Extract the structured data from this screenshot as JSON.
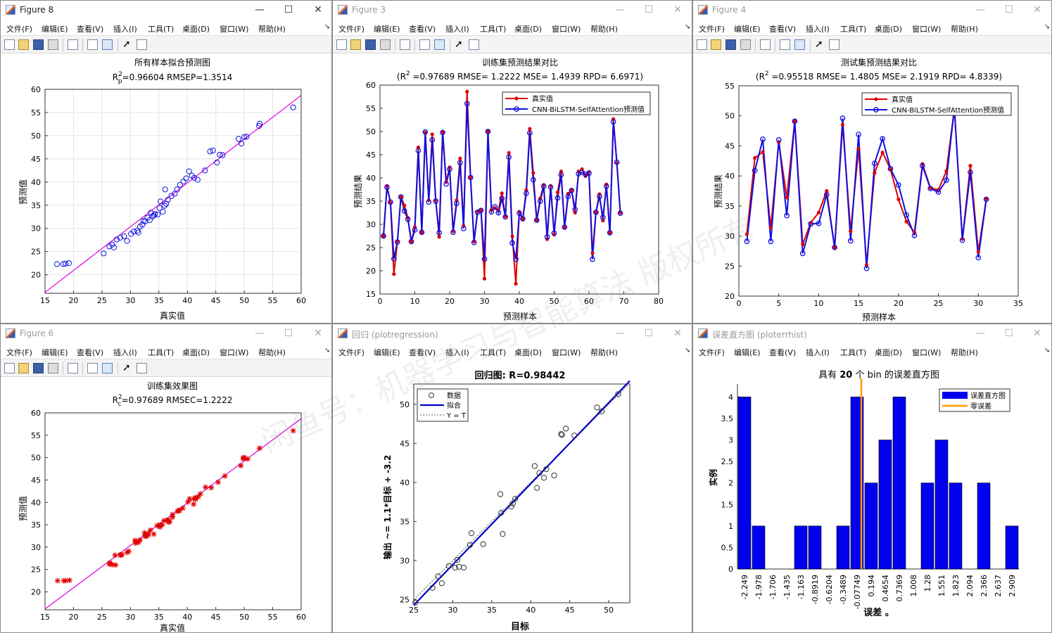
{
  "menu": [
    "文件(F)",
    "编辑(E)",
    "查看(V)",
    "插入(I)",
    "工具(T)",
    "桌面(D)",
    "窗口(W)",
    "帮助(H)"
  ],
  "window_buttons": {
    "minimize": "—",
    "maximize": "☐",
    "close": "✕"
  },
  "colors": {
    "red": "#e00000",
    "blue": "#1010e0",
    "magenta": "#e000e0",
    "orange": "#ff9900",
    "hist_blue": "#0000ee"
  },
  "figure8": {
    "window_title": "Figure 8",
    "title": "所有样本拟合预测图",
    "stat_pre": "R",
    "stat_sup": "2",
    "stat_sub": "p",
    "stat_rest": "=0.96604  RMSEP=1.3514",
    "chart_data": {
      "type": "scatter",
      "xlabel": "真实值",
      "ylabel": "预测值",
      "xlim": [
        15,
        60
      ],
      "ylim": [
        16,
        60
      ],
      "xticks": [
        15,
        20,
        25,
        30,
        35,
        40,
        45,
        50,
        55,
        60
      ],
      "yticks": [
        20,
        25,
        30,
        35,
        40,
        45,
        50,
        55,
        60
      ],
      "fit_line": [
        [
          15,
          16.2
        ],
        [
          60,
          58.7
        ]
      ],
      "points": [
        [
          17.1,
          22.3
        ],
        [
          18.2,
          22.3
        ],
        [
          18.6,
          22.4
        ],
        [
          19.2,
          22.5
        ],
        [
          25.3,
          24.6
        ],
        [
          26.3,
          26.1
        ],
        [
          26.8,
          26.5
        ],
        [
          27.1,
          25.9
        ],
        [
          27.6,
          27.6
        ],
        [
          28.2,
          28.0
        ],
        [
          28.9,
          28.3
        ],
        [
          29.4,
          27.3
        ],
        [
          30.1,
          28.8
        ],
        [
          30.6,
          29.3
        ],
        [
          31.2,
          29.5
        ],
        [
          31.7,
          30.4
        ],
        [
          32.1,
          30.8
        ],
        [
          32.6,
          31.5
        ],
        [
          33.0,
          32.3
        ],
        [
          33.4,
          31.8
        ],
        [
          33.9,
          32.6
        ],
        [
          34.3,
          33.1
        ],
        [
          34.8,
          33.0
        ],
        [
          35.3,
          35.8
        ],
        [
          35.7,
          33.6
        ],
        [
          36.0,
          34.9
        ],
        [
          36.6,
          36.2
        ],
        [
          37.2,
          37.0
        ],
        [
          37.8,
          37.5
        ],
        [
          38.2,
          38.4
        ],
        [
          38.7,
          39.4
        ],
        [
          39.3,
          40.1
        ],
        [
          39.8,
          40.8
        ],
        [
          40.3,
          42.3
        ],
        [
          40.8,
          41.4
        ],
        [
          41.2,
          40.9
        ],
        [
          41.8,
          40.5
        ],
        [
          43.1,
          42.5
        ],
        [
          44.0,
          46.6
        ],
        [
          44.5,
          46.8
        ],
        [
          45.2,
          44.2
        ],
        [
          45.7,
          45.9
        ],
        [
          46.2,
          45.8
        ],
        [
          49.0,
          49.3
        ],
        [
          49.5,
          48.3
        ],
        [
          50.0,
          49.7
        ],
        [
          50.4,
          49.8
        ],
        [
          52.6,
          52.1
        ],
        [
          52.7,
          52.6
        ],
        [
          58.6,
          56.1
        ],
        [
          31.4,
          29.1
        ],
        [
          32.3,
          31.6
        ],
        [
          33.6,
          33.4
        ],
        [
          35.1,
          34.4
        ],
        [
          36.3,
          35.3
        ],
        [
          34.1,
          32.8
        ],
        [
          36.1,
          38.4
        ]
      ]
    }
  },
  "figure3": {
    "window_title": "Figure 3",
    "title": "训练集预测结果对比",
    "stat_pre": "(R",
    "stat_sup": "2",
    "stat_rest": " =0.97689 RMSE= 1.2222 MSE= 1.4939 RPD= 6.6971)",
    "chart_data": {
      "type": "line",
      "xlabel": "预测样本",
      "ylabel": "预测结果",
      "xlim": [
        0,
        80
      ],
      "ylim": [
        15,
        60
      ],
      "xticks": [
        0,
        10,
        20,
        30,
        40,
        50,
        60,
        70,
        80
      ],
      "yticks": [
        15,
        20,
        25,
        30,
        35,
        40,
        45,
        50,
        55,
        60
      ],
      "legend": [
        "真实值",
        "CNN-BiLSTM-SelfAttention预测值"
      ],
      "series": [
        {
          "name": "真实值",
          "values": [
            27.5,
            38.3,
            34.7,
            19.3,
            26.3,
            35.9,
            34.1,
            31.4,
            26.3,
            29.4,
            46.6,
            28.3,
            49.8,
            35.2,
            49.4,
            35.2,
            27.3,
            49.9,
            39.2,
            42.3,
            28.5,
            35.2,
            44.2,
            29.7,
            58.6,
            40.1,
            26.3,
            32.8,
            33.1,
            18.3,
            50.0,
            33.1,
            33.5,
            33.1,
            36.7,
            31.7,
            45.4,
            27.4,
            17.2,
            32.7,
            31.2,
            37.4,
            50.6,
            41.1,
            30.9,
            35.6,
            38.5,
            26.8,
            38.3,
            27.8,
            36.9,
            41.4,
            29.3,
            36.6,
            37.4,
            32.5,
            41.4,
            41.9,
            40.4,
            41.3,
            23.8,
            32.6,
            36.5,
            30.8,
            38.6,
            28.2,
            52.7,
            43.2,
            32.5
          ]
        },
        {
          "name": "CNN-BiLSTM-SelfAttention预测值",
          "values": [
            27.5,
            38.0,
            34.8,
            22.6,
            26.2,
            35.9,
            32.9,
            31.1,
            26.3,
            28.8,
            45.9,
            28.3,
            49.9,
            34.8,
            48.2,
            35.0,
            28.2,
            49.8,
            38.7,
            41.9,
            28.3,
            34.5,
            43.3,
            29.1,
            56.0,
            40.1,
            26.1,
            32.6,
            33.0,
            22.5,
            50.0,
            32.7,
            33.8,
            32.5,
            35.6,
            31.6,
            44.5,
            26.0,
            22.5,
            32.4,
            31.2,
            36.7,
            49.7,
            39.6,
            30.9,
            35.0,
            38.2,
            27.3,
            38.0,
            28.1,
            35.7,
            40.7,
            29.4,
            36.0,
            37.3,
            33.2,
            40.9,
            41.2,
            40.8,
            41.0,
            22.5,
            32.6,
            36.0,
            31.5,
            38.2,
            28.2,
            52.1,
            43.4,
            32.4
          ]
        }
      ]
    }
  },
  "figure4": {
    "window_title": "Figure 4",
    "title": "测试集预测结果对比",
    "stat_pre": "(R",
    "stat_sup": "2",
    "stat_rest": " =0.95518 RMSE= 1.4805 MSE= 2.1919 RPD= 4.8339)",
    "chart_data": {
      "type": "line",
      "xlabel": "预测样本",
      "ylabel": "预测结果",
      "xlim": [
        0,
        35
      ],
      "ylim": [
        20,
        55
      ],
      "xticks": [
        0,
        5,
        10,
        15,
        20,
        25,
        30,
        35
      ],
      "yticks": [
        20,
        25,
        30,
        35,
        40,
        45,
        50,
        55
      ],
      "legend": [
        "真实值",
        "CNN-BiLSTM-SelfAttention预测值"
      ],
      "series": [
        {
          "name": "真实值",
          "values": [
            30.3,
            43.0,
            44.0,
            31.4,
            45.6,
            36.4,
            49.1,
            28.6,
            32.2,
            33.9,
            37.5,
            28.1,
            48.5,
            30.8,
            44.5,
            25.2,
            40.5,
            43.9,
            41.1,
            36.1,
            32.4,
            30.6,
            42.0,
            38.0,
            37.7,
            40.8,
            51.2,
            29.5,
            41.7,
            27.4,
            36.2
          ]
        },
        {
          "name": "CNN-BiLSTM-SelfAttention预测值",
          "values": [
            29.1,
            40.9,
            46.1,
            29.1,
            46.0,
            33.4,
            49.1,
            27.1,
            32.0,
            32.1,
            36.9,
            28.1,
            49.6,
            29.2,
            46.9,
            24.6,
            42.1,
            46.2,
            41.2,
            38.5,
            33.5,
            30.1,
            41.7,
            37.9,
            37.3,
            39.3,
            51.3,
            29.3,
            40.6,
            26.4,
            36.1
          ]
        }
      ]
    }
  },
  "figure6": {
    "window_title": "Figure 6",
    "title": "训练集效果图",
    "stat_pre": "R",
    "stat_sup": "2",
    "stat_sub": "c",
    "stat_rest": "=0.97689  RMSEC=1.2222",
    "chart_data": {
      "type": "scatter",
      "xlabel": "真实值",
      "ylabel": "预测值",
      "marker": "*",
      "xlim": [
        15,
        60
      ],
      "ylim": [
        16,
        60
      ],
      "xticks": [
        15,
        20,
        25,
        30,
        35,
        40,
        45,
        50,
        55,
        60
      ],
      "yticks": [
        20,
        25,
        30,
        35,
        40,
        45,
        50,
        55,
        60
      ],
      "fit_line": [
        [
          15,
          16.2
        ],
        [
          60,
          58.7
        ]
      ],
      "points": [
        [
          17.2,
          22.5
        ],
        [
          18.3,
          22.5
        ],
        [
          18.6,
          22.5
        ],
        [
          19.3,
          22.6
        ],
        [
          26.3,
          26.2
        ],
        [
          26.4,
          26.5
        ],
        [
          26.8,
          26.1
        ],
        [
          27.3,
          28.2
        ],
        [
          27.4,
          26.0
        ],
        [
          28.2,
          28.2
        ],
        [
          28.3,
          28.3
        ],
        [
          28.5,
          28.3
        ],
        [
          29.4,
          28.8
        ],
        [
          29.7,
          29.1
        ],
        [
          30.8,
          31.5
        ],
        [
          30.9,
          30.9
        ],
        [
          31.2,
          31.2
        ],
        [
          31.4,
          31.1
        ],
        [
          31.7,
          31.6
        ],
        [
          32.5,
          33.2
        ],
        [
          32.6,
          32.6
        ],
        [
          32.7,
          32.4
        ],
        [
          32.8,
          32.6
        ],
        [
          33.1,
          33.0
        ],
        [
          33.1,
          32.7
        ],
        [
          33.5,
          33.8
        ],
        [
          34.1,
          32.9
        ],
        [
          34.7,
          34.8
        ],
        [
          35.2,
          34.8
        ],
        [
          35.2,
          35.0
        ],
        [
          35.2,
          34.5
        ],
        [
          35.6,
          35.0
        ],
        [
          35.9,
          35.9
        ],
        [
          36.5,
          36.0
        ],
        [
          36.6,
          36.0
        ],
        [
          36.7,
          35.6
        ],
        [
          36.9,
          35.7
        ],
        [
          37.4,
          36.7
        ],
        [
          37.4,
          37.3
        ],
        [
          38.3,
          38.0
        ],
        [
          38.3,
          38.0
        ],
        [
          38.5,
          38.2
        ],
        [
          38.6,
          38.2
        ],
        [
          39.2,
          38.7
        ],
        [
          40.1,
          40.1
        ],
        [
          40.4,
          40.8
        ],
        [
          41.1,
          39.6
        ],
        [
          41.3,
          41.0
        ],
        [
          41.4,
          40.7
        ],
        [
          41.4,
          40.9
        ],
        [
          41.9,
          41.2
        ],
        [
          42.3,
          41.9
        ],
        [
          43.2,
          43.4
        ],
        [
          44.2,
          43.3
        ],
        [
          45.4,
          44.5
        ],
        [
          46.6,
          45.9
        ],
        [
          49.4,
          48.2
        ],
        [
          49.8,
          49.9
        ],
        [
          49.9,
          49.8
        ],
        [
          50.0,
          50.0
        ],
        [
          50.6,
          49.7
        ],
        [
          52.7,
          52.1
        ],
        [
          58.6,
          56.0
        ]
      ]
    }
  },
  "regression": {
    "window_title": "回归 (plotregression)",
    "title": "回归图: R=0.98442",
    "chart_data": {
      "type": "scatter",
      "xlabel": "目标",
      "ylabel": "输出 ~= 1.1*目标 + -3.2",
      "xlim": [
        25,
        52.7
      ],
      "ylim": [
        24.6,
        52.6
      ],
      "xticks": [
        25,
        30,
        35,
        40,
        45,
        50
      ],
      "yticks": [
        25,
        30,
        35,
        40,
        45,
        50
      ],
      "legend": [
        "数据",
        "拟合",
        "Y = T"
      ],
      "fit_line": [
        [
          25,
          24.3
        ],
        [
          52.7,
          53.0
        ]
      ],
      "identity_line": [
        [
          25,
          25
        ],
        [
          52.7,
          52.7
        ]
      ],
      "points": [
        [
          25.2,
          24.6
        ],
        [
          27.4,
          26.5
        ],
        [
          28.1,
          28.0
        ],
        [
          28.6,
          27.1
        ],
        [
          29.5,
          29.3
        ],
        [
          30.3,
          29.1
        ],
        [
          30.8,
          29.2
        ],
        [
          30.6,
          30.1
        ],
        [
          31.4,
          29.1
        ],
        [
          32.2,
          32.0
        ],
        [
          32.4,
          33.5
        ],
        [
          33.9,
          32.1
        ],
        [
          36.1,
          38.5
        ],
        [
          36.2,
          36.1
        ],
        [
          36.4,
          33.4
        ],
        [
          37.5,
          36.9
        ],
        [
          37.7,
          37.3
        ],
        [
          38.0,
          37.9
        ],
        [
          40.5,
          42.1
        ],
        [
          40.8,
          39.3
        ],
        [
          41.1,
          41.2
        ],
        [
          41.7,
          40.6
        ],
        [
          42.0,
          41.7
        ],
        [
          43.0,
          40.9
        ],
        [
          43.9,
          46.2
        ],
        [
          44.0,
          46.1
        ],
        [
          44.5,
          46.9
        ],
        [
          45.6,
          46.0
        ],
        [
          48.5,
          49.6
        ],
        [
          49.1,
          49.1
        ],
        [
          51.2,
          51.3
        ]
      ]
    }
  },
  "errhist": {
    "window_title": "误差直方图 (ploterrhist)",
    "title_pre": "具有 ",
    "title_bold": "20",
    "title_post": " 个 bin 的误差直方图",
    "chart_data": {
      "type": "bar",
      "xlabel": "误差 。",
      "ylabel": "实例",
      "ylim": [
        0,
        4.3
      ],
      "yticks": [
        0,
        0.5,
        1,
        1.5,
        2,
        2.5,
        3,
        3.5,
        4
      ],
      "legend": [
        "误差直方图",
        "零误差"
      ],
      "zero_error_position": -0.0,
      "categories": [
        "-2.249",
        "-1.978",
        "-1.706",
        "-1.435",
        "-1.163",
        "-0.8919",
        "-0.6204",
        "-0.3489",
        "-0.07749",
        "0.194",
        "0.4654",
        "0.7369",
        "1.008",
        "1.28",
        "1.551",
        "1.823",
        "2.094",
        "2.366",
        "2.637",
        "2.909"
      ],
      "values": [
        4,
        1,
        0,
        0,
        1,
        1,
        0,
        1,
        4,
        2,
        3,
        4,
        0,
        2,
        3,
        2,
        0,
        2,
        0,
        1
      ]
    }
  },
  "watermark": "闲鱼号：机器学习与智能算法 版权所有"
}
